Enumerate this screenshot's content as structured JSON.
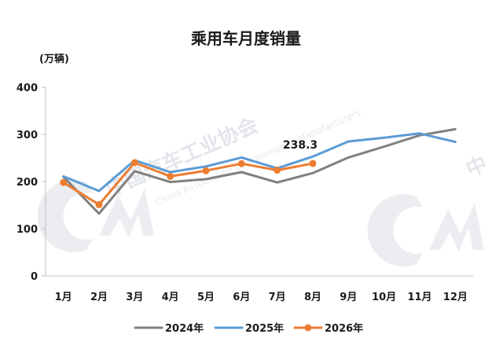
{
  "chart_data": {
    "type": "line",
    "title": "乘用车月度销量",
    "unit_label": "(万辆)",
    "categories": [
      "1月",
      "2月",
      "3月",
      "4月",
      "5月",
      "6月",
      "7月",
      "8月",
      "9月",
      "10月",
      "11月",
      "12月"
    ],
    "ylim": [
      0,
      400
    ],
    "yticks": [
      0,
      100,
      200,
      300,
      400
    ],
    "grid": false,
    "legend_position": "bottom",
    "series": [
      {
        "name": "2024年",
        "color": "#808080",
        "marker": false,
        "values": [
          210,
          132,
          222,
          199,
          205,
          220,
          198,
          218,
          251,
          274,
          298,
          311
        ]
      },
      {
        "name": "2025年",
        "color": "#5b9bd5",
        "marker": false,
        "values": [
          211,
          180,
          245,
          220,
          232,
          251,
          228,
          253,
          285,
          293,
          302,
          284
        ]
      },
      {
        "name": "2026年",
        "color": "#ed7d31",
        "marker": true,
        "values": [
          198,
          151,
          240,
          211,
          223,
          238,
          224,
          238.3,
          null,
          null,
          null,
          null
        ]
      }
    ],
    "annotations": [
      {
        "series": 2,
        "index": 7,
        "text": "238.3"
      }
    ]
  },
  "watermark": {
    "text": "中国汽车工业协会",
    "subtext": "China Association of Automobile Manufacturers",
    "fragment": "中"
  }
}
